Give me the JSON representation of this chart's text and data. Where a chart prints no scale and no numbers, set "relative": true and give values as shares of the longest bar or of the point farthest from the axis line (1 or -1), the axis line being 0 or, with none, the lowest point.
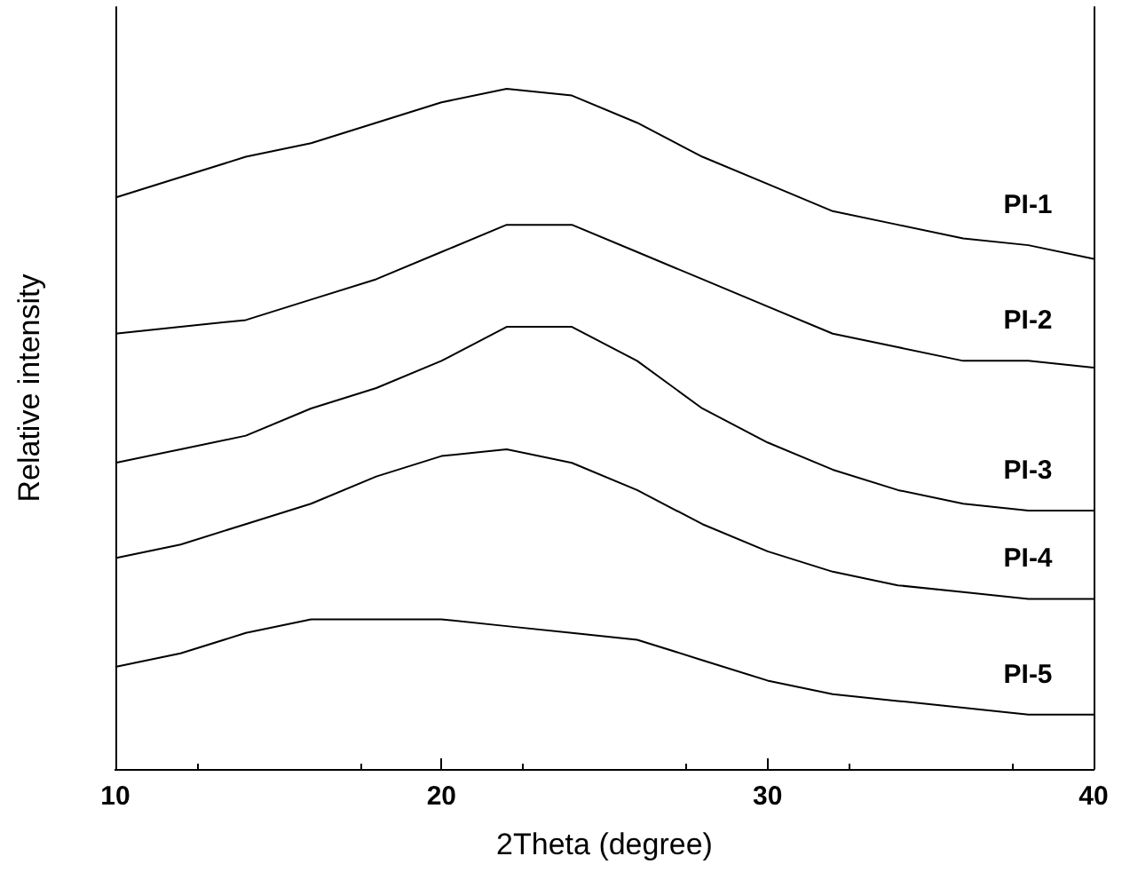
{
  "chart_data": {
    "type": "line",
    "xlabel": "2Theta (degree)",
    "ylabel": "Relative intensity",
    "relative": true,
    "xlim": [
      10,
      40
    ],
    "xticks": [
      10,
      20,
      30,
      40
    ],
    "grid": false,
    "legend": false,
    "marker": "none",
    "line_style": "solid",
    "x": [
      10,
      12,
      14,
      16,
      18,
      20,
      22,
      24,
      26,
      28,
      30,
      32,
      34,
      36,
      38,
      40
    ],
    "series": [
      {
        "name": "PI-1",
        "color": "#000000",
        "values": [
          0.84,
          0.87,
          0.9,
          0.92,
          0.95,
          0.98,
          1.0,
          0.99,
          0.95,
          0.9,
          0.86,
          0.82,
          0.8,
          0.78,
          0.77,
          0.75
        ]
      },
      {
        "name": "PI-2",
        "color": "#000000",
        "values": [
          0.64,
          0.65,
          0.66,
          0.69,
          0.72,
          0.76,
          0.8,
          0.8,
          0.76,
          0.72,
          0.68,
          0.64,
          0.62,
          0.6,
          0.6,
          0.59
        ]
      },
      {
        "name": "PI-3",
        "color": "#000000",
        "values": [
          0.45,
          0.47,
          0.49,
          0.53,
          0.56,
          0.6,
          0.65,
          0.65,
          0.6,
          0.53,
          0.48,
          0.44,
          0.41,
          0.39,
          0.38,
          0.38
        ]
      },
      {
        "name": "PI-4",
        "color": "#000000",
        "values": [
          0.31,
          0.33,
          0.36,
          0.39,
          0.43,
          0.46,
          0.47,
          0.45,
          0.41,
          0.36,
          0.32,
          0.29,
          0.27,
          0.26,
          0.25,
          0.25
        ]
      },
      {
        "name": "PI-5",
        "color": "#000000",
        "values": [
          0.15,
          0.17,
          0.2,
          0.22,
          0.22,
          0.22,
          0.21,
          0.2,
          0.19,
          0.16,
          0.13,
          0.11,
          0.1,
          0.09,
          0.08,
          0.08
        ]
      }
    ]
  }
}
